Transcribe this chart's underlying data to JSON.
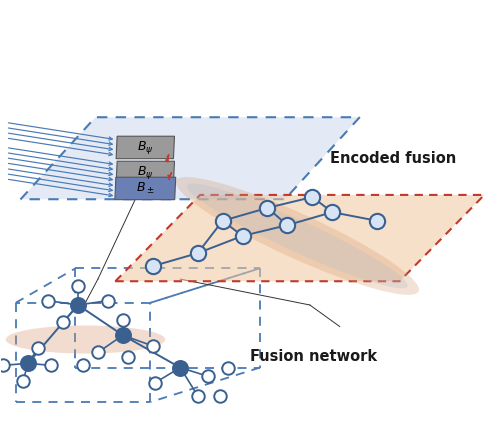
{
  "bg_color": "#ffffff",
  "encoded_fusion_label": "Encoded fusion",
  "fusion_network_label": "Fusion network",
  "blue_plane_color": "#ccd9ee",
  "blue_plane_alpha": 0.55,
  "blue_dash_color": "#4a7ab5",
  "red_plane_color": "#f0c8a0",
  "red_plane_alpha": 0.55,
  "red_dash_color": "#c0392b",
  "node_edge_color": "#3a6090",
  "node_fill_dark": "#3a6090",
  "node_fill_light": "#d6e4f5",
  "peach_color": "#d4956a",
  "arrow_color": "#4a7ab5",
  "connector_color": "#333333",
  "gray_box1_color": "#9a9a9a",
  "gray_box2_color": "#9a9a9a",
  "blue_box_color": "#6a80b5"
}
